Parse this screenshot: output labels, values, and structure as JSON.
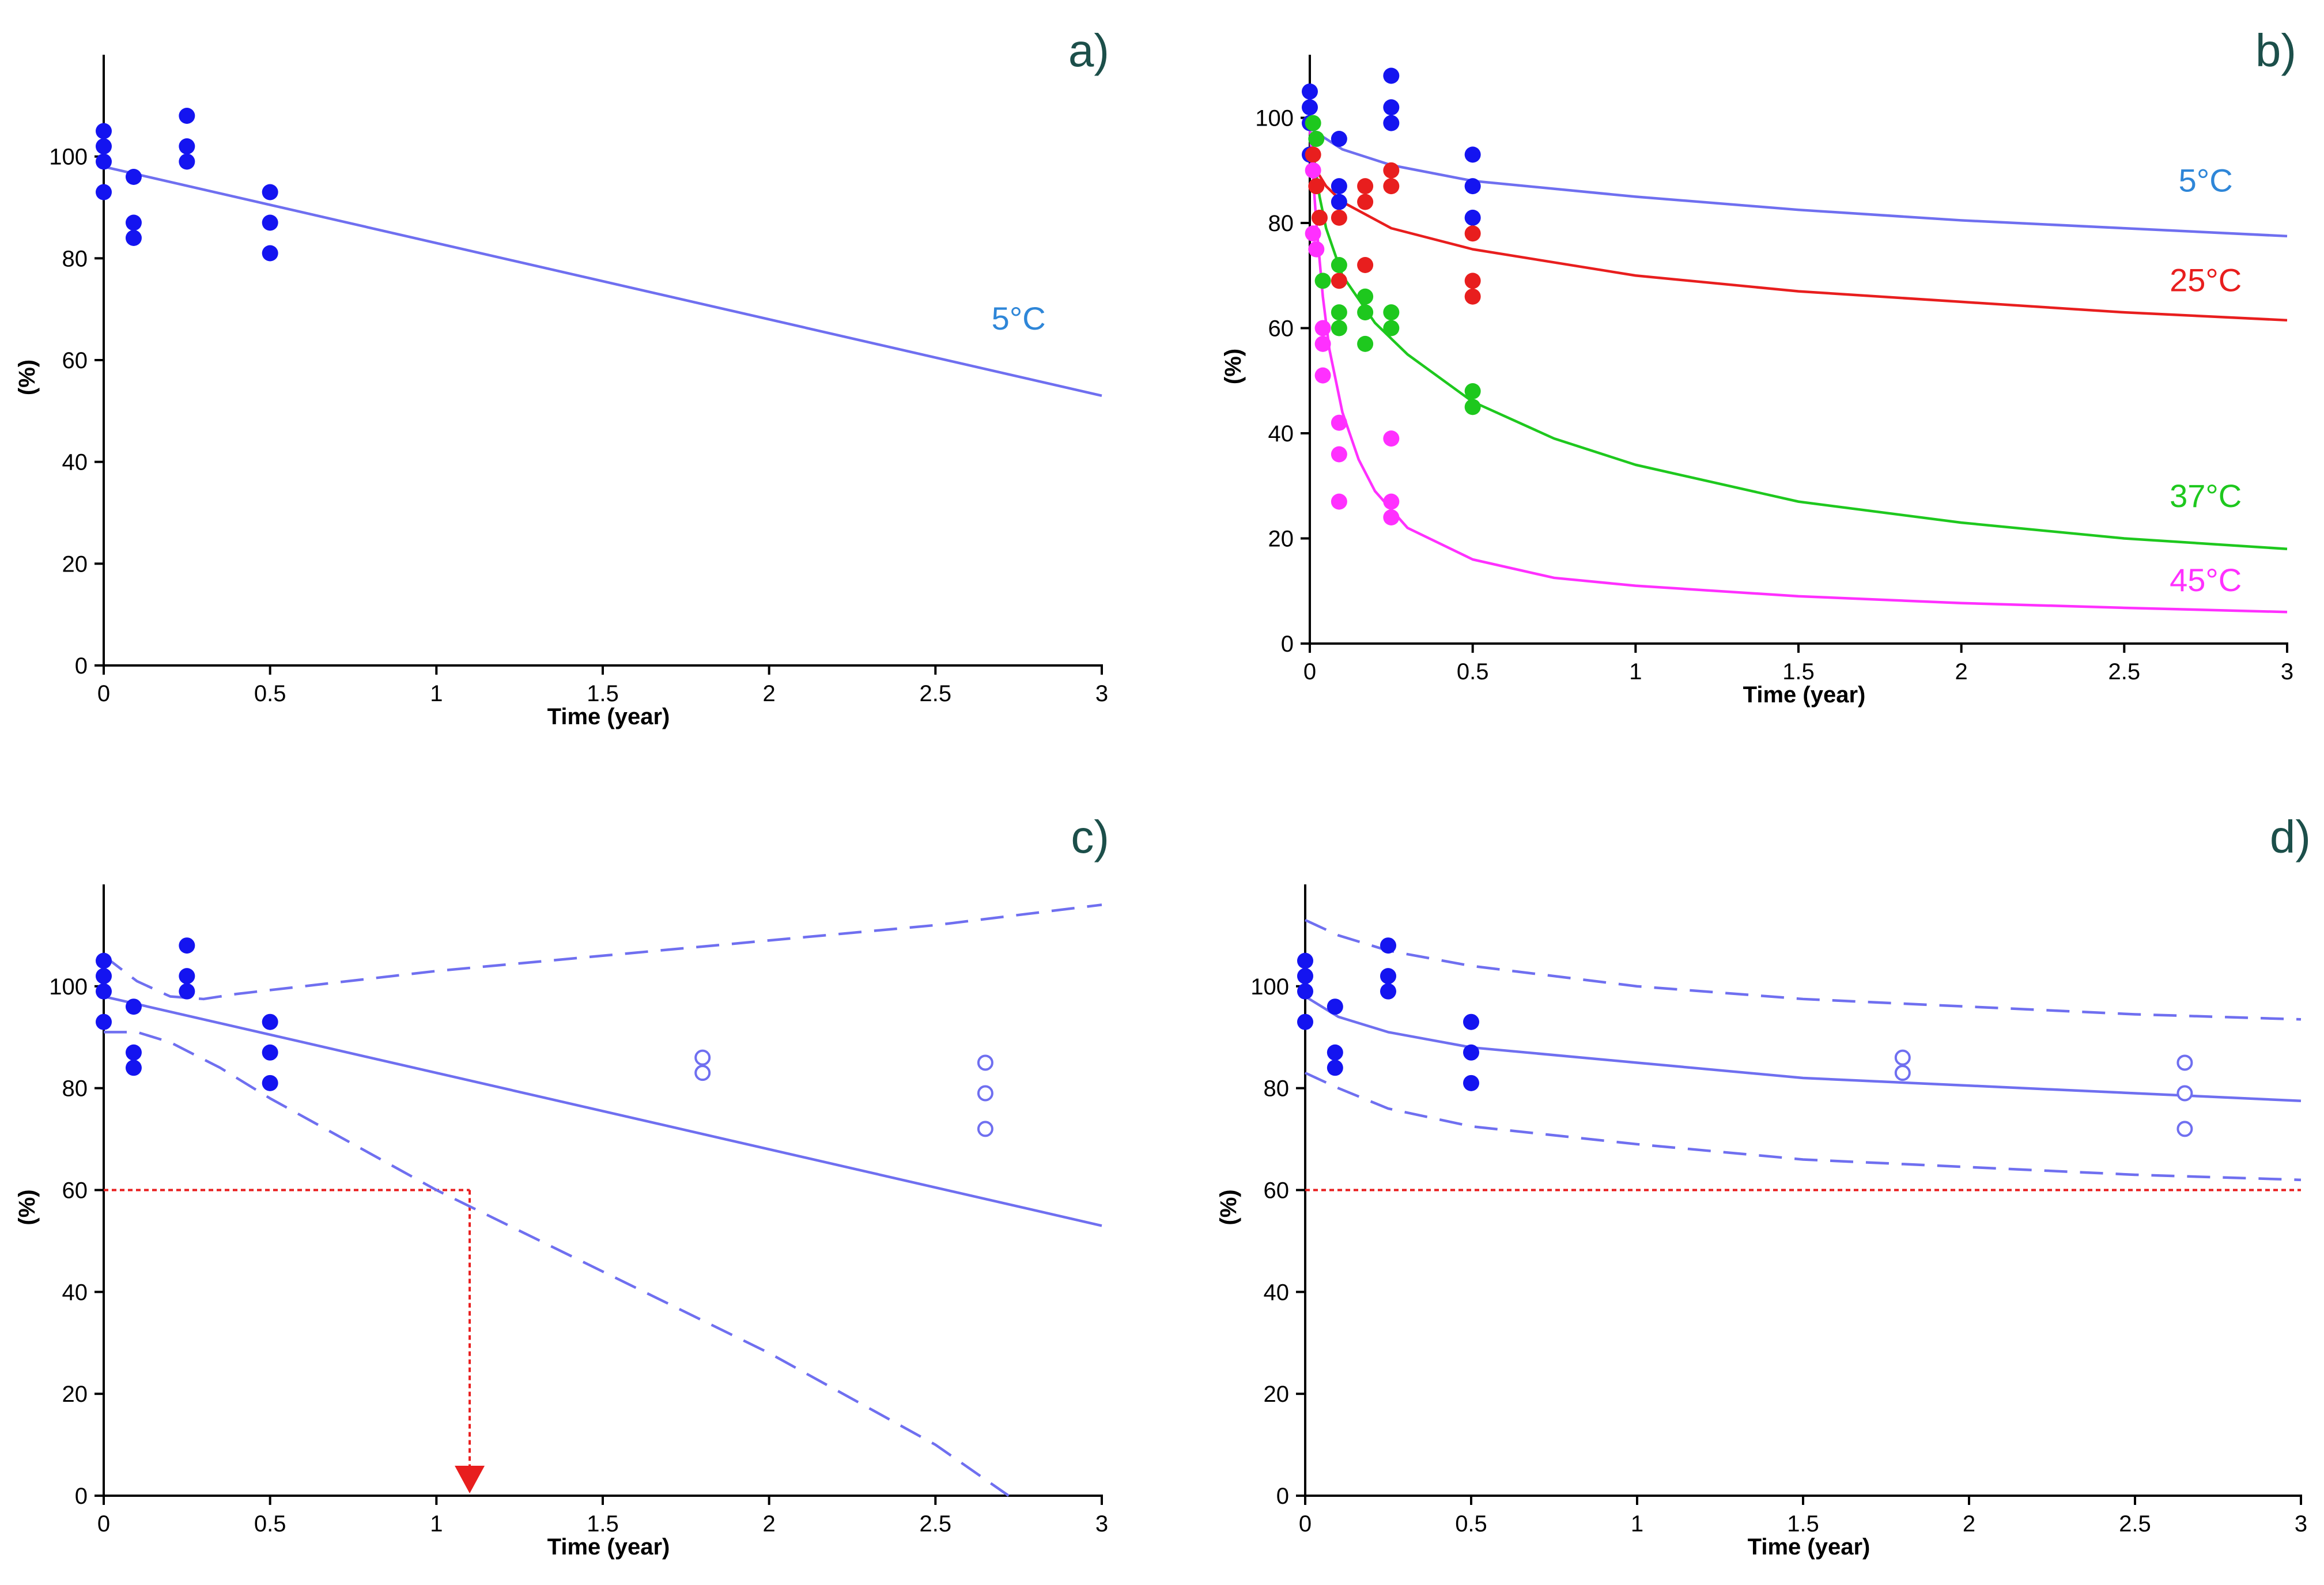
{
  "colors": {
    "blue_points": "#1414f0",
    "blue_line": "#6f6ff0",
    "red": "#e81e1e",
    "green": "#1ec81e",
    "magenta": "#ff30ff",
    "label_blue": "#2e86d8",
    "label_red": "#e81e1e",
    "label_green": "#1ec81e",
    "label_magenta": "#ff30ff",
    "threshold": "#e81e1e"
  },
  "chart_data": [
    {
      "panel": "a)",
      "type": "scatter",
      "xlabel": "Time (year)",
      "ylabel": "(%)",
      "xlim": [
        0,
        3
      ],
      "ylim": [
        0,
        120
      ],
      "xticks": [
        "0",
        "0.5",
        "1",
        "1.5",
        "2",
        "2.5",
        "3"
      ],
      "yticks": [
        "0",
        "20",
        "40",
        "60",
        "80",
        "100"
      ],
      "grid": false,
      "points": [
        {
          "x": 0,
          "y": 105
        },
        {
          "x": 0,
          "y": 102
        },
        {
          "x": 0,
          "y": 99
        },
        {
          "x": 0,
          "y": 93
        },
        {
          "x": 0.09,
          "y": 96
        },
        {
          "x": 0.09,
          "y": 87
        },
        {
          "x": 0.09,
          "y": 84
        },
        {
          "x": 0.25,
          "y": 108
        },
        {
          "x": 0.25,
          "y": 102
        },
        {
          "x": 0.25,
          "y": 99
        },
        {
          "x": 0.5,
          "y": 93
        },
        {
          "x": 0.5,
          "y": 87
        },
        {
          "x": 0.5,
          "y": 81
        }
      ],
      "fits": [
        {
          "name": "5°C",
          "style": "solid",
          "color": "#6f6ff0",
          "x": [
            0,
            3
          ],
          "y": [
            98,
            53
          ]
        }
      ],
      "series_labels": [
        {
          "text": "5°C",
          "color": "#2e86d8",
          "x": 2.75,
          "y": 66
        }
      ]
    },
    {
      "panel": "b)",
      "type": "scatter",
      "xlabel": "Time (year)",
      "ylabel": "(%)",
      "xlim": [
        0,
        3
      ],
      "ylim": [
        0,
        112
      ],
      "xticks": [
        "0",
        "0.5",
        "1",
        "1.5",
        "2",
        "2.5",
        "3"
      ],
      "yticks": [
        "0",
        "20",
        "40",
        "60",
        "80",
        "100"
      ],
      "grid": false,
      "point_groups": [
        {
          "color": "#1414f0",
          "points": [
            {
              "x": 0,
              "y": 105
            },
            {
              "x": 0,
              "y": 102
            },
            {
              "x": 0,
              "y": 99
            },
            {
              "x": 0,
              "y": 93
            },
            {
              "x": 0.09,
              "y": 96
            },
            {
              "x": 0.09,
              "y": 87
            },
            {
              "x": 0.09,
              "y": 84
            },
            {
              "x": 0.25,
              "y": 108
            },
            {
              "x": 0.25,
              "y": 102
            },
            {
              "x": 0.25,
              "y": 99
            },
            {
              "x": 0.5,
              "y": 93
            },
            {
              "x": 0.5,
              "y": 87
            },
            {
              "x": 0.5,
              "y": 81
            }
          ]
        },
        {
          "color": "#e81e1e",
          "points": [
            {
              "x": 0.01,
              "y": 93
            },
            {
              "x": 0.02,
              "y": 87
            },
            {
              "x": 0.03,
              "y": 81
            },
            {
              "x": 0.09,
              "y": 81
            },
            {
              "x": 0.09,
              "y": 69
            },
            {
              "x": 0.17,
              "y": 87
            },
            {
              "x": 0.17,
              "y": 84
            },
            {
              "x": 0.17,
              "y": 72
            },
            {
              "x": 0.25,
              "y": 90
            },
            {
              "x": 0.25,
              "y": 87
            },
            {
              "x": 0.5,
              "y": 78
            },
            {
              "x": 0.5,
              "y": 69
            },
            {
              "x": 0.5,
              "y": 66
            }
          ]
        },
        {
          "color": "#1ec81e",
          "points": [
            {
              "x": 0.01,
              "y": 99
            },
            {
              "x": 0.02,
              "y": 96
            },
            {
              "x": 0.04,
              "y": 69
            },
            {
              "x": 0.09,
              "y": 72
            },
            {
              "x": 0.09,
              "y": 63
            },
            {
              "x": 0.09,
              "y": 60
            },
            {
              "x": 0.17,
              "y": 66
            },
            {
              "x": 0.17,
              "y": 63
            },
            {
              "x": 0.17,
              "y": 57
            },
            {
              "x": 0.25,
              "y": 63
            },
            {
              "x": 0.25,
              "y": 60
            },
            {
              "x": 0.5,
              "y": 48
            },
            {
              "x": 0.5,
              "y": 45
            }
          ]
        },
        {
          "color": "#ff30ff",
          "points": [
            {
              "x": 0.01,
              "y": 90
            },
            {
              "x": 0.01,
              "y": 78
            },
            {
              "x": 0.02,
              "y": 75
            },
            {
              "x": 0.04,
              "y": 60
            },
            {
              "x": 0.04,
              "y": 57
            },
            {
              "x": 0.04,
              "y": 51
            },
            {
              "x": 0.09,
              "y": 42
            },
            {
              "x": 0.09,
              "y": 36
            },
            {
              "x": 0.09,
              "y": 27
            },
            {
              "x": 0.25,
              "y": 39
            },
            {
              "x": 0.25,
              "y": 27
            },
            {
              "x": 0.25,
              "y": 24
            }
          ]
        }
      ],
      "fits": [
        {
          "name": "5°C",
          "style": "solid",
          "color": "#6f6ff0",
          "x": [
            0,
            0.05,
            0.1,
            0.25,
            0.5,
            1,
            1.5,
            2,
            2.5,
            3
          ],
          "y": [
            98,
            96,
            94,
            91,
            88,
            85,
            82.5,
            80.5,
            79,
            77.5
          ]
        },
        {
          "name": "25°C",
          "style": "solid",
          "color": "#e81e1e",
          "x": [
            0,
            0.05,
            0.1,
            0.25,
            0.5,
            1,
            1.5,
            2,
            2.5,
            3
          ],
          "y": [
            92,
            87,
            84,
            79,
            75,
            70,
            67,
            65,
            63,
            61.5
          ]
        },
        {
          "name": "37°C",
          "style": "solid",
          "color": "#1ec81e",
          "x": [
            0,
            0.03,
            0.05,
            0.1,
            0.2,
            0.3,
            0.5,
            0.75,
            1,
            1.5,
            2,
            2.5,
            3
          ],
          "y": [
            98,
            85,
            79,
            70,
            61,
            55,
            46,
            39,
            34,
            27,
            23,
            20,
            18
          ]
        },
        {
          "name": "45°C",
          "style": "solid",
          "color": "#ff30ff",
          "x": [
            0,
            0.02,
            0.04,
            0.06,
            0.1,
            0.15,
            0.2,
            0.3,
            0.5,
            0.75,
            1,
            1.5,
            2,
            2.5,
            3
          ],
          "y": [
            98,
            80,
            66,
            56,
            44,
            35,
            29,
            22,
            16,
            12.5,
            11,
            9,
            7.7,
            6.8,
            6
          ]
        }
      ],
      "series_labels": [
        {
          "text": "5°C",
          "color": "#2e86d8",
          "x": 2.75,
          "y": 86
        },
        {
          "text": "25°C",
          "color": "#e81e1e",
          "x": 2.75,
          "y": 67
        },
        {
          "text": "37°C",
          "color": "#1ec81e",
          "x": 2.75,
          "y": 26
        },
        {
          "text": "45°C",
          "color": "#ff30ff",
          "x": 2.75,
          "y": 10
        }
      ]
    },
    {
      "panel": "c)",
      "type": "scatter",
      "xlabel": "Time (year)",
      "ylabel": "(%)",
      "xlim": [
        0,
        3
      ],
      "ylim": [
        0,
        120
      ],
      "xticks": [
        "0",
        "0.5",
        "1",
        "1.5",
        "2",
        "2.5",
        "3"
      ],
      "yticks": [
        "0",
        "20",
        "40",
        "60",
        "80",
        "100"
      ],
      "grid": false,
      "points": [
        {
          "x": 0,
          "y": 105
        },
        {
          "x": 0,
          "y": 102
        },
        {
          "x": 0,
          "y": 99
        },
        {
          "x": 0,
          "y": 93
        },
        {
          "x": 0.09,
          "y": 96
        },
        {
          "x": 0.09,
          "y": 87
        },
        {
          "x": 0.09,
          "y": 84
        },
        {
          "x": 0.25,
          "y": 108
        },
        {
          "x": 0.25,
          "y": 102
        },
        {
          "x": 0.25,
          "y": 99
        },
        {
          "x": 0.5,
          "y": 93
        },
        {
          "x": 0.5,
          "y": 87
        },
        {
          "x": 0.5,
          "y": 81
        }
      ],
      "open_points": [
        {
          "x": 1.8,
          "y": 86
        },
        {
          "x": 1.8,
          "y": 83
        },
        {
          "x": 2.65,
          "y": 85
        },
        {
          "x": 2.65,
          "y": 79
        },
        {
          "x": 2.65,
          "y": 72
        }
      ],
      "fits": [
        {
          "name": "prediction",
          "style": "solid",
          "color": "#6f6ff0",
          "x": [
            0,
            3
          ],
          "y": [
            98,
            53
          ]
        },
        {
          "name": "upper",
          "style": "dashed",
          "color": "#6f6ff0",
          "x": [
            0,
            0.1,
            0.2,
            0.3,
            0.4,
            0.6,
            1,
            1.5,
            2,
            2.5,
            3
          ],
          "y": [
            106,
            101,
            98,
            97.5,
            98.5,
            100,
            103,
            106,
            109,
            112,
            116
          ]
        },
        {
          "name": "lower",
          "style": "dashed",
          "color": "#6f6ff0",
          "x": [
            0,
            0.1,
            0.2,
            0.35,
            0.5,
            0.75,
            1,
            1.5,
            2,
            2.5,
            2.72
          ],
          "y": [
            91,
            91,
            89,
            84,
            78,
            69,
            60,
            44,
            28,
            10,
            0
          ]
        }
      ],
      "threshold": {
        "y": 60,
        "x_end": 1.1,
        "arrow_x": 1.1
      }
    },
    {
      "panel": "d)",
      "type": "scatter",
      "xlabel": "Time (year)",
      "ylabel": "(%)",
      "xlim": [
        0,
        3
      ],
      "ylim": [
        0,
        120
      ],
      "xticks": [
        "0",
        "0.5",
        "1",
        "1.5",
        "2",
        "2.5",
        "3"
      ],
      "yticks": [
        "0",
        "20",
        "40",
        "60",
        "80",
        "100"
      ],
      "grid": false,
      "points": [
        {
          "x": 0,
          "y": 105
        },
        {
          "x": 0,
          "y": 102
        },
        {
          "x": 0,
          "y": 99
        },
        {
          "x": 0,
          "y": 93
        },
        {
          "x": 0.09,
          "y": 96
        },
        {
          "x": 0.09,
          "y": 87
        },
        {
          "x": 0.09,
          "y": 84
        },
        {
          "x": 0.25,
          "y": 108
        },
        {
          "x": 0.25,
          "y": 102
        },
        {
          "x": 0.25,
          "y": 99
        },
        {
          "x": 0.5,
          "y": 93
        },
        {
          "x": 0.5,
          "y": 87
        },
        {
          "x": 0.5,
          "y": 81
        }
      ],
      "open_points": [
        {
          "x": 1.8,
          "y": 86
        },
        {
          "x": 1.8,
          "y": 83
        },
        {
          "x": 2.65,
          "y": 85
        },
        {
          "x": 2.65,
          "y": 79
        },
        {
          "x": 2.65,
          "y": 72
        }
      ],
      "fits": [
        {
          "name": "prediction",
          "style": "solid",
          "color": "#6f6ff0",
          "x": [
            0,
            0.05,
            0.1,
            0.25,
            0.5,
            1,
            1.5,
            2,
            2.5,
            3
          ],
          "y": [
            98,
            96,
            94,
            91,
            88,
            85,
            82,
            80.5,
            79,
            77.5
          ]
        },
        {
          "name": "upper",
          "style": "dashed",
          "color": "#6f6ff0",
          "x": [
            0,
            0.1,
            0.25,
            0.5,
            1,
            1.5,
            2,
            2.5,
            3
          ],
          "y": [
            113,
            110,
            107,
            104,
            100,
            97.5,
            96,
            94.5,
            93.5
          ]
        },
        {
          "name": "lower",
          "style": "dashed",
          "color": "#6f6ff0",
          "x": [
            0,
            0.1,
            0.25,
            0.5,
            1,
            1.5,
            2,
            2.5,
            3
          ],
          "y": [
            83,
            80,
            76,
            72.5,
            69,
            66,
            64.5,
            63,
            62
          ]
        }
      ],
      "threshold": {
        "y": 60
      }
    }
  ]
}
